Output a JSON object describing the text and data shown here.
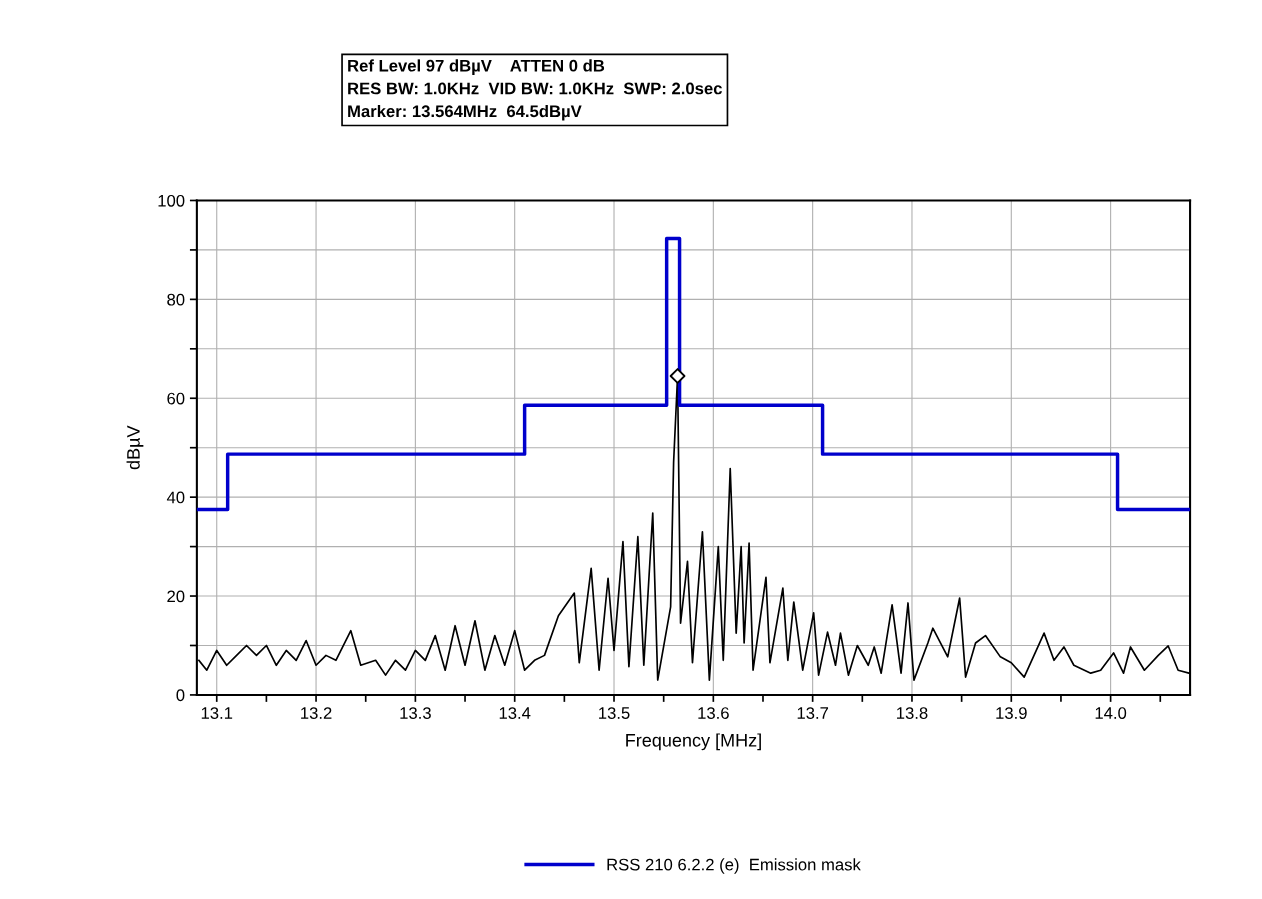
{
  "chart_data": {
    "type": "line",
    "annotations": [
      "Ref Level 97 dBµV    ATTEN 0 dB",
      "RES BW: 1.0KHz  VID BW: 1.0KHz  SWP: 2.0sec",
      "Marker: 13.564MHz  64.5dBµV"
    ],
    "xlabel": "Frequency [MHz]",
    "ylabel": "dBµV",
    "series": [
      {
        "color": "#000000",
        "x": [
          13.082,
          13.09,
          13.1,
          13.11,
          13.12,
          13.13,
          13.14,
          13.15,
          13.16,
          13.17,
          13.18,
          13.19,
          13.2,
          13.21,
          13.22,
          13.235,
          13.245,
          13.26,
          13.27,
          13.28,
          13.29,
          13.3,
          13.31,
          13.32,
          13.33,
          13.34,
          13.35,
          13.36,
          13.37,
          13.38,
          13.39,
          13.4,
          13.41,
          13.42,
          13.43,
          13.444,
          13.46,
          13.465,
          13.477,
          13.485,
          13.494,
          13.5,
          13.509,
          13.515,
          13.524,
          13.53,
          13.539,
          13.544,
          13.557,
          13.56,
          13.564,
          13.567,
          13.574,
          13.579,
          13.589,
          13.596,
          13.605,
          13.61,
          13.617,
          13.623,
          13.628,
          13.631,
          13.636,
          13.64,
          13.653,
          13.657,
          13.67,
          13.675,
          13.681,
          13.69,
          13.701,
          13.706,
          13.715,
          13.723,
          13.728,
          13.736,
          13.745,
          13.756,
          13.762,
          13.769,
          13.78,
          13.789,
          13.796,
          13.802,
          13.816,
          13.821,
          13.836,
          13.848,
          13.854,
          13.864,
          13.874,
          13.889,
          13.9,
          13.913,
          13.933,
          13.943,
          13.953,
          13.963,
          13.98,
          13.99,
          14.003,
          14.013,
          14.02,
          14.034,
          14.048,
          14.058,
          14.068,
          14.079
        ],
        "values": [
          7,
          5,
          9,
          6,
          8,
          10,
          8,
          10,
          6,
          9,
          7,
          11,
          6,
          8,
          7,
          13,
          6,
          7,
          4,
          7,
          5,
          9,
          7,
          12,
          5,
          14,
          6,
          15,
          5,
          12,
          6,
          13,
          5,
          7,
          8,
          16,
          20.6,
          6.5,
          25.6,
          5,
          23.6,
          9,
          31,
          5.7,
          32,
          6,
          36.8,
          3,
          17.8,
          47,
          64.5,
          14.5,
          27,
          6.5,
          33,
          3,
          30,
          7,
          45.8,
          12.5,
          30,
          10.5,
          30.7,
          5,
          23.8,
          6.5,
          21.6,
          7,
          18.8,
          5,
          16.6,
          4,
          12.7,
          6,
          12.5,
          4,
          10,
          6,
          9.7,
          4.4,
          18.2,
          4.4,
          18.6,
          3,
          10.5,
          13.5,
          7.7,
          19.6,
          3.6,
          10.5,
          12,
          7.7,
          6.5,
          3.6,
          12.5,
          7,
          9.7,
          6,
          4.4,
          5,
          8.5,
          4.4,
          9.7,
          5,
          8,
          9.9,
          5,
          4.4
        ]
      },
      {
        "type": "step",
        "name": "RSS 210 6.2.2 (e)  Emission mask",
        "color": "#0000cc",
        "x": [
          13.08,
          13.111,
          13.41,
          13.553,
          13.566,
          13.71,
          14.007,
          14.08
        ],
        "values": [
          37.5,
          48.7,
          58.6,
          92.3,
          58.6,
          48.7,
          37.5,
          37.5
        ]
      },
      {
        "type": "scatter",
        "color": "#000000",
        "marker": "diamond",
        "x": [
          13.564
        ],
        "values": [
          64.5
        ]
      }
    ],
    "xlim": [
      13.08,
      14.08
    ],
    "xticks": [
      13.1,
      {
        "value": 13.15,
        "label": null
      },
      13.2,
      {
        "value": 13.25,
        "label": null
      },
      13.3,
      {
        "value": 13.35,
        "label": null
      },
      13.4,
      {
        "value": 13.45,
        "label": null
      },
      13.5,
      {
        "value": 13.55,
        "label": null
      },
      13.6,
      {
        "value": 13.65,
        "label": null
      },
      13.7,
      {
        "value": 13.75,
        "label": null
      },
      13.8,
      {
        "value": 13.85,
        "label": null
      },
      13.9,
      {
        "value": 13.95,
        "label": null
      },
      {
        "value": 14.0,
        "label": "14.0"
      },
      {
        "value": 14.05,
        "label": null
      }
    ],
    "ylim": [
      0,
      100
    ],
    "yticks": [
      0,
      {
        "value": 10,
        "label": null
      },
      20,
      {
        "value": 30,
        "label": null
      },
      40,
      {
        "value": 50,
        "label": null
      },
      60,
      {
        "value": 70,
        "label": null
      },
      80,
      {
        "value": 90,
        "label": null
      },
      100
    ],
    "grid": true,
    "legend": "bottom"
  }
}
